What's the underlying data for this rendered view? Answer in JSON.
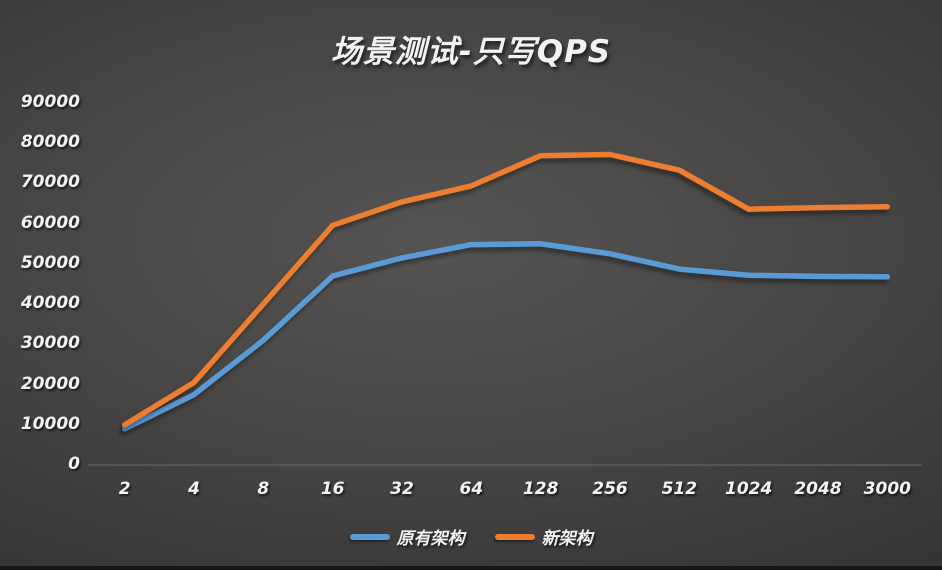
{
  "title": "场景测试-只写QPS",
  "colors": {
    "background_center": "#555453",
    "background_edge": "#272726",
    "text": "#f2f2f2",
    "axis_line": "#6e6e6d",
    "series_blue": "#5B9BD5",
    "series_orange": "#ED7D31"
  },
  "chart_data": {
    "type": "line",
    "title": "场景测试-只写QPS",
    "categories": [
      "2",
      "4",
      "8",
      "16",
      "32",
      "64",
      "128",
      "256",
      "512",
      "1024",
      "2048",
      "3000"
    ],
    "series": [
      {
        "name": "原有架构",
        "color": "#5B9BD5",
        "values": [
          9000,
          17500,
          31000,
          47000,
          51500,
          54800,
          55000,
          52500,
          48700,
          47200,
          46900,
          46800
        ]
      },
      {
        "name": "新架构",
        "color": "#ED7D31",
        "values": [
          10000,
          20500,
          40000,
          59600,
          65400,
          69400,
          76900,
          77200,
          73300,
          63600,
          64000,
          64200
        ]
      }
    ],
    "xlabel": "",
    "ylabel": "",
    "ylim": [
      0,
      90000
    ],
    "ytick_step": 10000,
    "ytick_labels": [
      "0",
      "10000",
      "20000",
      "30000",
      "40000",
      "50000",
      "60000",
      "70000",
      "80000",
      "90000"
    ],
    "grid": false,
    "legend_position": "bottom"
  }
}
